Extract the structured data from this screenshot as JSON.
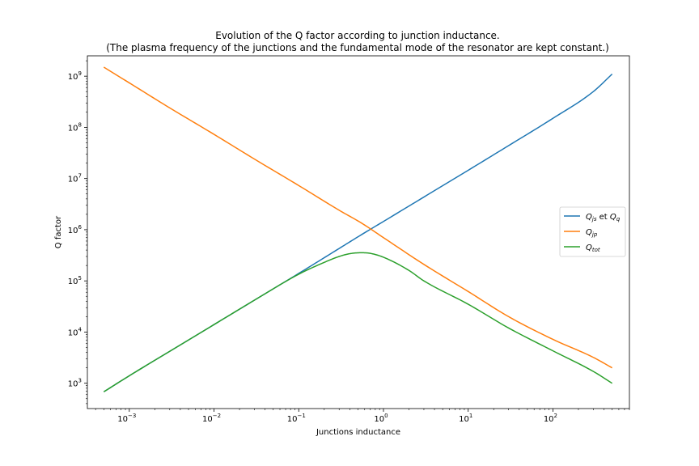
{
  "chart_data": {
    "type": "line",
    "title_line1": "Evolution of the Q factor according to junction inductance.",
    "title_line2": "(The plasma frequency of the junctions and the fundamental mode of the resonator are kept constant.)",
    "xlabel": "Junctions inductance",
    "ylabel": "Q factor",
    "xscale": "log",
    "yscale": "log",
    "xlim": [
      0.00032,
      800
    ],
    "ylim": [
      320,
      2500000000
    ],
    "x_ticks": [
      {
        "base": "10",
        "exp": "−3",
        "value": 0.001
      },
      {
        "base": "10",
        "exp": "−2",
        "value": 0.01
      },
      {
        "base": "10",
        "exp": "−1",
        "value": 0.1
      },
      {
        "base": "10",
        "exp": "0",
        "value": 1
      },
      {
        "base": "10",
        "exp": "1",
        "value": 10
      },
      {
        "base": "10",
        "exp": "2",
        "value": 100
      }
    ],
    "y_ticks": [
      {
        "base": "10",
        "exp": "3",
        "value": 1000
      },
      {
        "base": "10",
        "exp": "4",
        "value": 10000
      },
      {
        "base": "10",
        "exp": "5",
        "value": 100000
      },
      {
        "base": "10",
        "exp": "6",
        "value": 1000000
      },
      {
        "base": "10",
        "exp": "7",
        "value": 10000000
      },
      {
        "base": "10",
        "exp": "8",
        "value": 100000000
      },
      {
        "base": "10",
        "exp": "9",
        "value": 1000000000
      }
    ],
    "legend_position": "center-right",
    "series": [
      {
        "name_main": "Q",
        "name_sub": "js",
        "name_mid": " et ",
        "name_main2": "Q",
        "name_sub2": "q",
        "color": "#1f77b4",
        "x": [
          0.0005,
          0.001,
          0.003,
          0.01,
          0.03,
          0.1,
          0.3,
          0.55,
          1,
          3,
          10,
          30,
          100,
          300,
          500
        ],
        "y": [
          680,
          1400,
          4200,
          14000,
          42000,
          140000,
          430000,
          800000,
          1450000,
          4350000,
          14500000,
          44000000,
          150000000,
          500000000,
          1100000000
        ]
      },
      {
        "name_main": "Q",
        "name_sub": "jp",
        "color": "#ff7f0e",
        "x": [
          0.0005,
          0.001,
          0.003,
          0.01,
          0.03,
          0.1,
          0.3,
          0.55,
          1,
          3,
          10,
          30,
          100,
          300,
          500
        ],
        "y": [
          1500000000,
          740000000,
          240000000,
          73000000,
          24000000,
          7300000,
          2400000,
          1350000,
          700000,
          210000,
          62000,
          20000,
          7200,
          3200,
          2000
        ]
      },
      {
        "name_main": "Q",
        "name_sub": "tot",
        "color": "#2ca02c",
        "x": [
          0.0005,
          0.001,
          0.003,
          0.01,
          0.03,
          0.1,
          0.2,
          0.3,
          0.4,
          0.55,
          0.7,
          1,
          2,
          3,
          10,
          30,
          100,
          300,
          500
        ],
        "y": [
          680,
          1400,
          4200,
          14000,
          42000,
          135000,
          230000,
          300000,
          340000,
          355000,
          345000,
          290000,
          160000,
          100000,
          35000,
          12000,
          4300,
          1700,
          1000
        ]
      }
    ]
  }
}
